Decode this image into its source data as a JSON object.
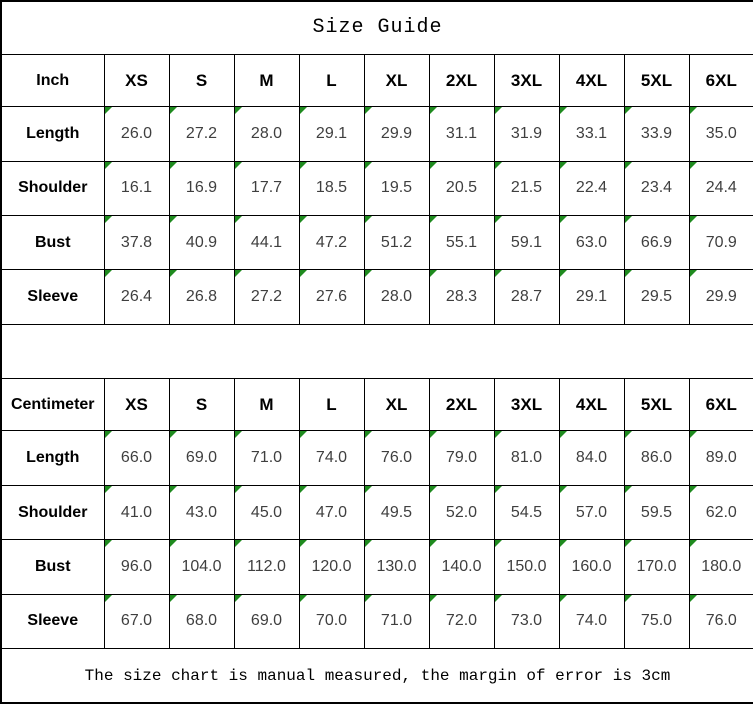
{
  "title": "Size Guide",
  "footer_note": "The size chart is manual measured, the margin of error is 3cm",
  "colors": {
    "border": "#000000",
    "background": "#ffffff",
    "marker_green": "#1f8b1f",
    "value_text": "#3f3f3f",
    "header_text": "#000000"
  },
  "chart_data": [
    {
      "type": "table",
      "title": "Size Guide",
      "unit": "Inch",
      "sizes": [
        "XS",
        "S",
        "M",
        "L",
        "XL",
        "2XL",
        "3XL",
        "4XL",
        "5XL",
        "6XL"
      ],
      "rows": [
        {
          "label": "Length",
          "values": [
            "26.0",
            "27.2",
            "28.0",
            "29.1",
            "29.9",
            "31.1",
            "31.9",
            "33.1",
            "33.9",
            "35.0"
          ]
        },
        {
          "label": "Shoulder",
          "values": [
            "16.1",
            "16.9",
            "17.7",
            "18.5",
            "19.5",
            "20.5",
            "21.5",
            "22.4",
            "23.4",
            "24.4"
          ]
        },
        {
          "label": "Bust",
          "values": [
            "37.8",
            "40.9",
            "44.1",
            "47.2",
            "51.2",
            "55.1",
            "59.1",
            "63.0",
            "66.9",
            "70.9"
          ]
        },
        {
          "label": "Sleeve",
          "values": [
            "26.4",
            "26.8",
            "27.2",
            "27.6",
            "28.0",
            "28.3",
            "28.7",
            "29.1",
            "29.5",
            "29.9"
          ]
        }
      ]
    },
    {
      "type": "table",
      "title": "Size Guide",
      "unit": "Centimeter",
      "sizes": [
        "XS",
        "S",
        "M",
        "L",
        "XL",
        "2XL",
        "3XL",
        "4XL",
        "5XL",
        "6XL"
      ],
      "rows": [
        {
          "label": "Length",
          "values": [
            "66.0",
            "69.0",
            "71.0",
            "74.0",
            "76.0",
            "79.0",
            "81.0",
            "84.0",
            "86.0",
            "89.0"
          ]
        },
        {
          "label": "Shoulder",
          "values": [
            "41.0",
            "43.0",
            "45.0",
            "47.0",
            "49.5",
            "52.0",
            "54.5",
            "57.0",
            "59.5",
            "62.0"
          ]
        },
        {
          "label": "Bust",
          "values": [
            "96.0",
            "104.0",
            "112.0",
            "120.0",
            "130.0",
            "140.0",
            "150.0",
            "160.0",
            "170.0",
            "180.0"
          ]
        },
        {
          "label": "Sleeve",
          "values": [
            "67.0",
            "68.0",
            "69.0",
            "70.0",
            "71.0",
            "72.0",
            "73.0",
            "74.0",
            "75.0",
            "76.0"
          ]
        }
      ]
    }
  ]
}
